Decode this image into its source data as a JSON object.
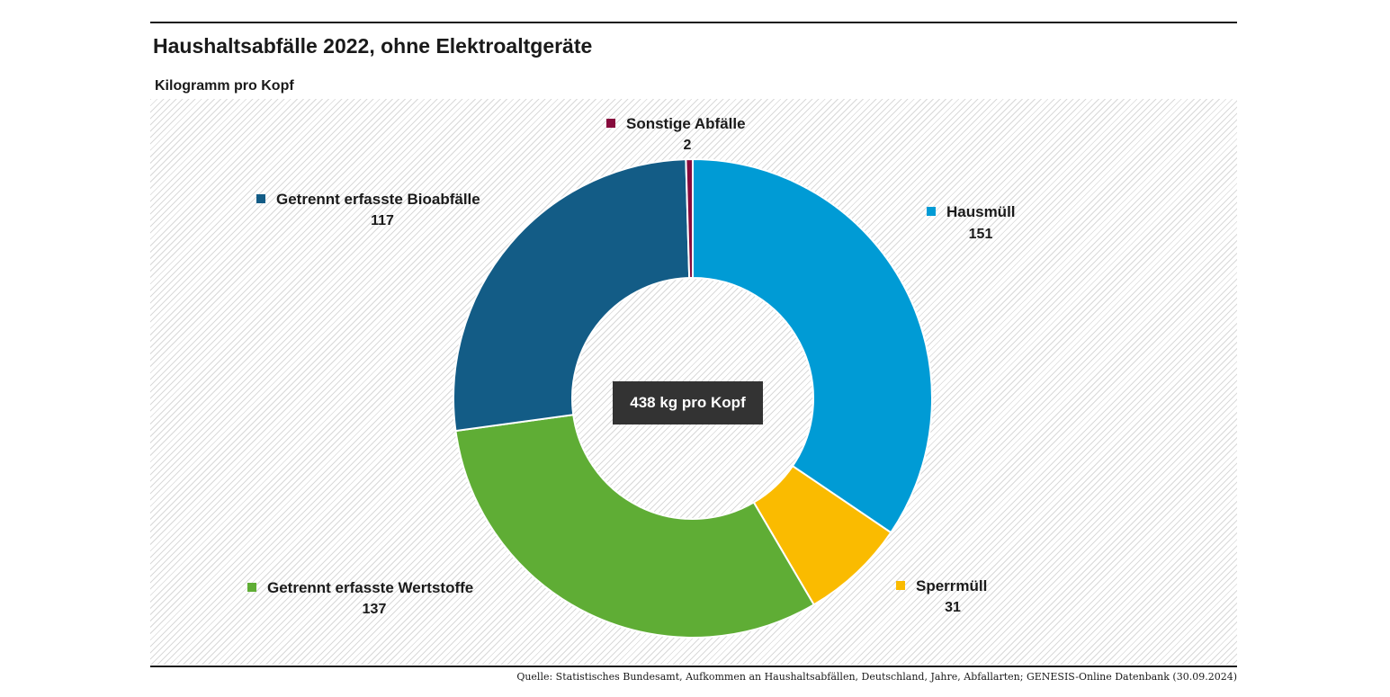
{
  "title": "Haushaltsabfälle 2022, ohne Elektroaltgeräte",
  "source": "Quelle: Statistisches Bundesamt, Aufkommen an Haushaltsabfällen, Deutschland, Jahre, Abfallarten; GENESIS-Online Datenbank (30.09.2024)",
  "chart_data": {
    "type": "pie",
    "variant": "donut",
    "title": "Haushaltsabfälle 2022, ohne Elektroaltgeräte",
    "subtitle": "Kilogramm pro Kopf",
    "center_label": "438 kg pro Kopf",
    "total": 438,
    "unit": "kg pro Kopf",
    "slices": [
      {
        "label": "Hausmüll",
        "value": 151,
        "value_text": "151",
        "color": "#009bd5"
      },
      {
        "label": "Sperrmüll",
        "value": 31,
        "value_text": "31",
        "color": "#fabb00"
      },
      {
        "label": "Getrennt erfasste Wertstoffe",
        "value": 137,
        "value_text": "137",
        "color": "#5fad35"
      },
      {
        "label": "Getrennt erfasste Bioabfälle",
        "value": 117,
        "value_text": "117",
        "color": "#135c86"
      },
      {
        "label": "Sonstige Abfälle",
        "value": 2,
        "value_text": "2",
        "color": "#860a3c"
      }
    ]
  }
}
